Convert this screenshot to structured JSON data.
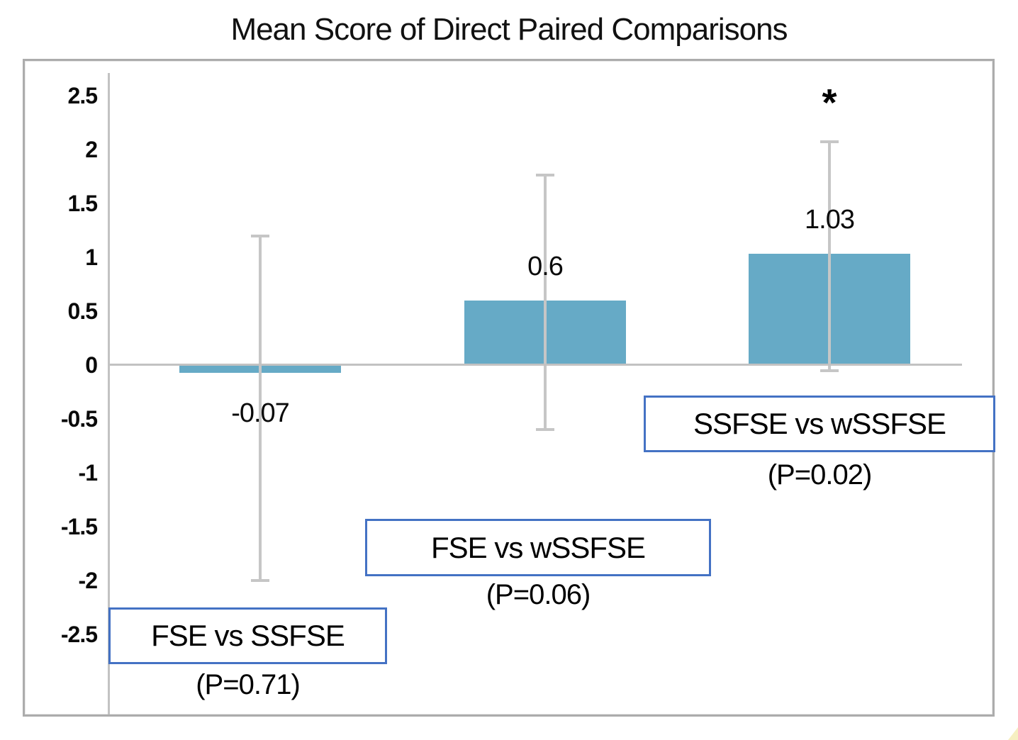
{
  "title": "Mean Score of Direct Paired Comparisons",
  "chart_data": {
    "type": "bar",
    "title": "Mean Score of Direct Paired Comparisons",
    "categories": [
      "FSE vs SSFSE",
      "FSE vs wSSFSE",
      "SSFSE vs wSSFSE"
    ],
    "values": [
      -0.07,
      0.6,
      1.03
    ],
    "value_labels": [
      "-0.07",
      "0.6",
      "1.03"
    ],
    "error_low": [
      -2.0,
      -0.6,
      -0.05
    ],
    "error_high": [
      1.2,
      1.76,
      2.07
    ],
    "p_values": [
      "(P=0.71)",
      "(P=0.06)",
      "(P=0.02)"
    ],
    "significance": [
      "",
      "",
      "*"
    ],
    "xlabel": "",
    "ylabel": "",
    "ylim": [
      -2.5,
      2.5
    ],
    "ytick_labels": [
      "2.5",
      "2",
      "1.5",
      "1",
      "0.5",
      "0",
      "-0.5",
      "-1",
      "-1.5",
      "-2",
      "-2.5"
    ],
    "grid": false,
    "legend": false,
    "colors": {
      "bar_fill": "#66aac6",
      "error_bar": "#c6c6c6",
      "axis_line": "#c2c2c2",
      "callout_border": "#4472c4",
      "frame_border": "#acacac",
      "text": "#000000"
    }
  }
}
